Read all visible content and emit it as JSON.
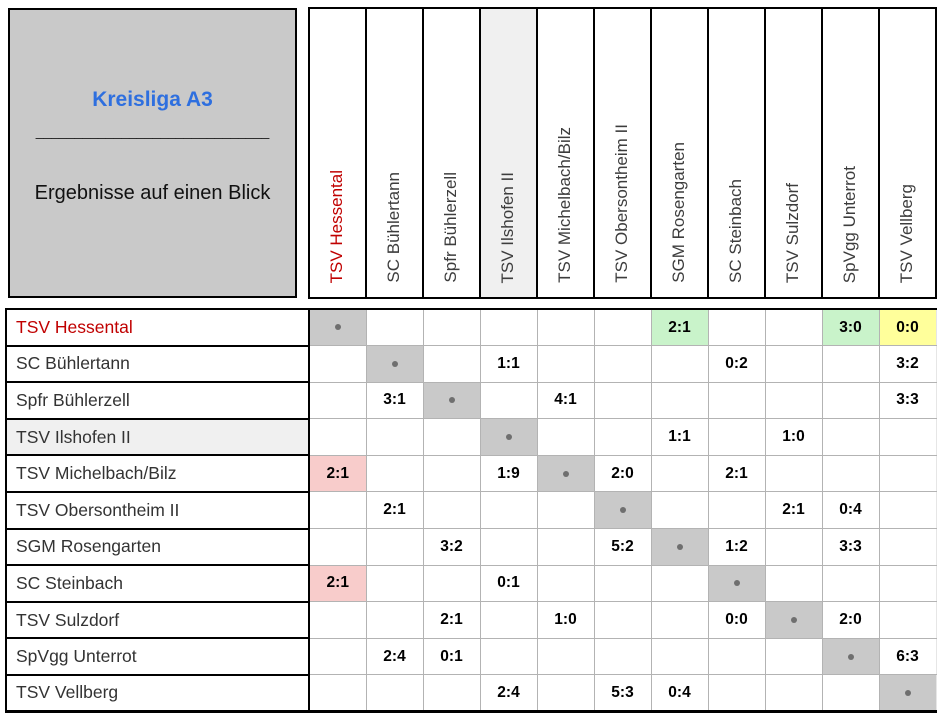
{
  "title_box": {
    "title": "Kreisliga A3",
    "divider": "______________________________",
    "subtitle": "Ergebnisse auf einen Blick"
  },
  "teams": [
    {
      "name": "TSV Hessental",
      "flag": "red"
    },
    {
      "name": "SC Bühlertann",
      "flag": ""
    },
    {
      "name": "Spfr Bühlerzell",
      "flag": ""
    },
    {
      "name": "TSV Ilshofen II",
      "flag": "shaded"
    },
    {
      "name": "TSV Michelbach/Bilz",
      "flag": ""
    },
    {
      "name": "TSV Obersontheim II",
      "flag": ""
    },
    {
      "name": "SGM Rosengarten",
      "flag": ""
    },
    {
      "name": "SC Steinbach",
      "flag": ""
    },
    {
      "name": "TSV Sulzdorf",
      "flag": ""
    },
    {
      "name": "SpVgg Unterrot",
      "flag": ""
    },
    {
      "name": "TSV Vellberg",
      "flag": ""
    }
  ],
  "matrix": [
    [
      "dot",
      "",
      "",
      "",
      "",
      "",
      "2:1",
      "",
      "",
      "3:0",
      "0:0"
    ],
    [
      "",
      "dot",
      "",
      "1:1",
      "",
      "",
      "",
      "0:2",
      "",
      "",
      "3:2"
    ],
    [
      "",
      "3:1",
      "dot",
      "",
      "4:1",
      "",
      "",
      "",
      "",
      "",
      "3:3"
    ],
    [
      "",
      "",
      "",
      "dot",
      "",
      "",
      "1:1",
      "",
      "1:0",
      "",
      ""
    ],
    [
      "2:1",
      "",
      "",
      "1:9",
      "dot",
      "2:0",
      "",
      "2:1",
      "",
      "",
      ""
    ],
    [
      "",
      "2:1",
      "",
      "",
      "",
      "dot",
      "",
      "",
      "2:1",
      "0:4",
      ""
    ],
    [
      "",
      "",
      "3:2",
      "",
      "",
      "5:2",
      "dot",
      "1:2",
      "",
      "3:3",
      ""
    ],
    [
      "2:1",
      "",
      "",
      "0:1",
      "",
      "",
      "",
      "dot",
      "",
      "",
      ""
    ],
    [
      "",
      "",
      "2:1",
      "",
      "1:0",
      "",
      "",
      "0:0",
      "dot",
      "2:0",
      ""
    ],
    [
      "",
      "2:4",
      "0:1",
      "",
      "",
      "",
      "",
      "",
      "",
      "dot",
      "6:3"
    ],
    [
      "",
      "",
      "",
      "2:4",
      "",
      "5:3",
      "0:4",
      "",
      "",
      "",
      "dot"
    ]
  ],
  "highlights": {
    "0-6": "green",
    "0-9": "green",
    "0-10": "yellow",
    "4-0": "pink",
    "7-0": "pink"
  },
  "colors": {
    "accent_blue": "#2e6fdf",
    "team_red": "#c00000",
    "header_gray": "#c9c9c9",
    "diagonal_gray": "#c9c9c9",
    "shade_gray": "#f0f0f0",
    "green": "#c9f3ca",
    "yellow": "#ffff9b",
    "pink": "#f8cccb",
    "grid_line": "#b3b3b3"
  }
}
